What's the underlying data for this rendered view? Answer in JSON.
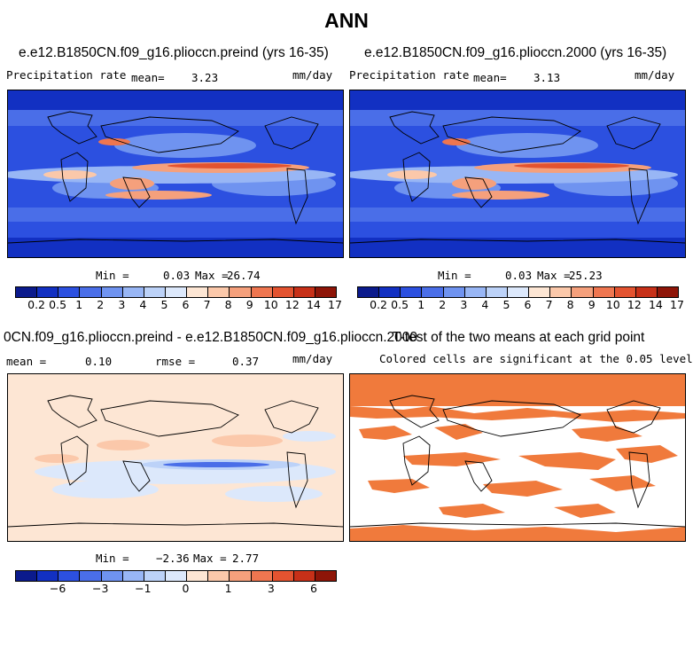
{
  "title": "ANN",
  "panels": [
    {
      "title": "e.e12.B1850CN.f09_g16.plioccn.preind (yrs 16-35)",
      "variable": "Precipitation rate",
      "mean_label": "mean=",
      "mean_value": "3.23",
      "units": "mm/day",
      "min_label": "Min =",
      "min_value": "0.03",
      "max_label": "Max =",
      "max_value": "26.74"
    },
    {
      "title": "e.e12.B1850CN.f09_g16.plioccn.2000 (yrs 16-35)",
      "variable": "Precipitation rate",
      "mean_label": "mean=",
      "mean_value": "3.13",
      "units": "mm/day",
      "min_label": "Min =",
      "min_value": "0.03",
      "max_label": "Max =",
      "max_value": "25.23"
    },
    {
      "title": "0CN.f09_g16.plioccn.preind - e.e12.B1850CN.f09_g16.plioccn.2000",
      "mean_label": "mean =",
      "mean_value": "0.10",
      "rmse_label": "rmse =",
      "rmse_value": "0.37",
      "units": "mm/day",
      "min_label": "Min =",
      "min_value": "−2.36",
      "max_label": "Max =",
      "max_value": "2.77"
    },
    {
      "title": "T-test of the two means at each grid point",
      "subtitle": "Colored cells are significant at the 0.05 level"
    }
  ],
  "colorbars": {
    "precip": {
      "colors": [
        "#0b1a8c",
        "#1230c2",
        "#2c50e0",
        "#4a6ee8",
        "#6f93f0",
        "#98b6f5",
        "#bcd2f8",
        "#dce8fb",
        "#fde6d4",
        "#fbc8aa",
        "#f5a07c",
        "#ef7650",
        "#e35330",
        "#c73018",
        "#8e1508"
      ],
      "ticks": [
        "0.2",
        "0.5",
        "1",
        "2",
        "3",
        "4",
        "5",
        "6",
        "7",
        "8",
        "9",
        "10",
        "12",
        "14",
        "17"
      ]
    },
    "diff": {
      "colors": [
        "#0b1a8c",
        "#1230c2",
        "#2c50e0",
        "#4a6ee8",
        "#6f93f0",
        "#98b6f5",
        "#bcd2f8",
        "#dce8fb",
        "#fde6d4",
        "#fbc8aa",
        "#f5a07c",
        "#ef7650",
        "#e35330",
        "#c73018",
        "#8e1508"
      ],
      "ticks": [
        {
          "label": "−6",
          "pos": 2
        },
        {
          "label": "−3",
          "pos": 4
        },
        {
          "label": "−1",
          "pos": 6
        },
        {
          "label": "0",
          "pos": 8
        },
        {
          "label": "1",
          "pos": 10
        },
        {
          "label": "3",
          "pos": 12
        },
        {
          "label": "6",
          "pos": 14
        }
      ]
    }
  },
  "colors": {
    "ocean_dry": "#2c50e0",
    "ocean_wet": "#ef7650",
    "diff_bg": "#fde6d4",
    "diff_neg": "#bcd2f8",
    "diff_negstrong": "#4a6ee8",
    "significant": "#f07a3c"
  }
}
